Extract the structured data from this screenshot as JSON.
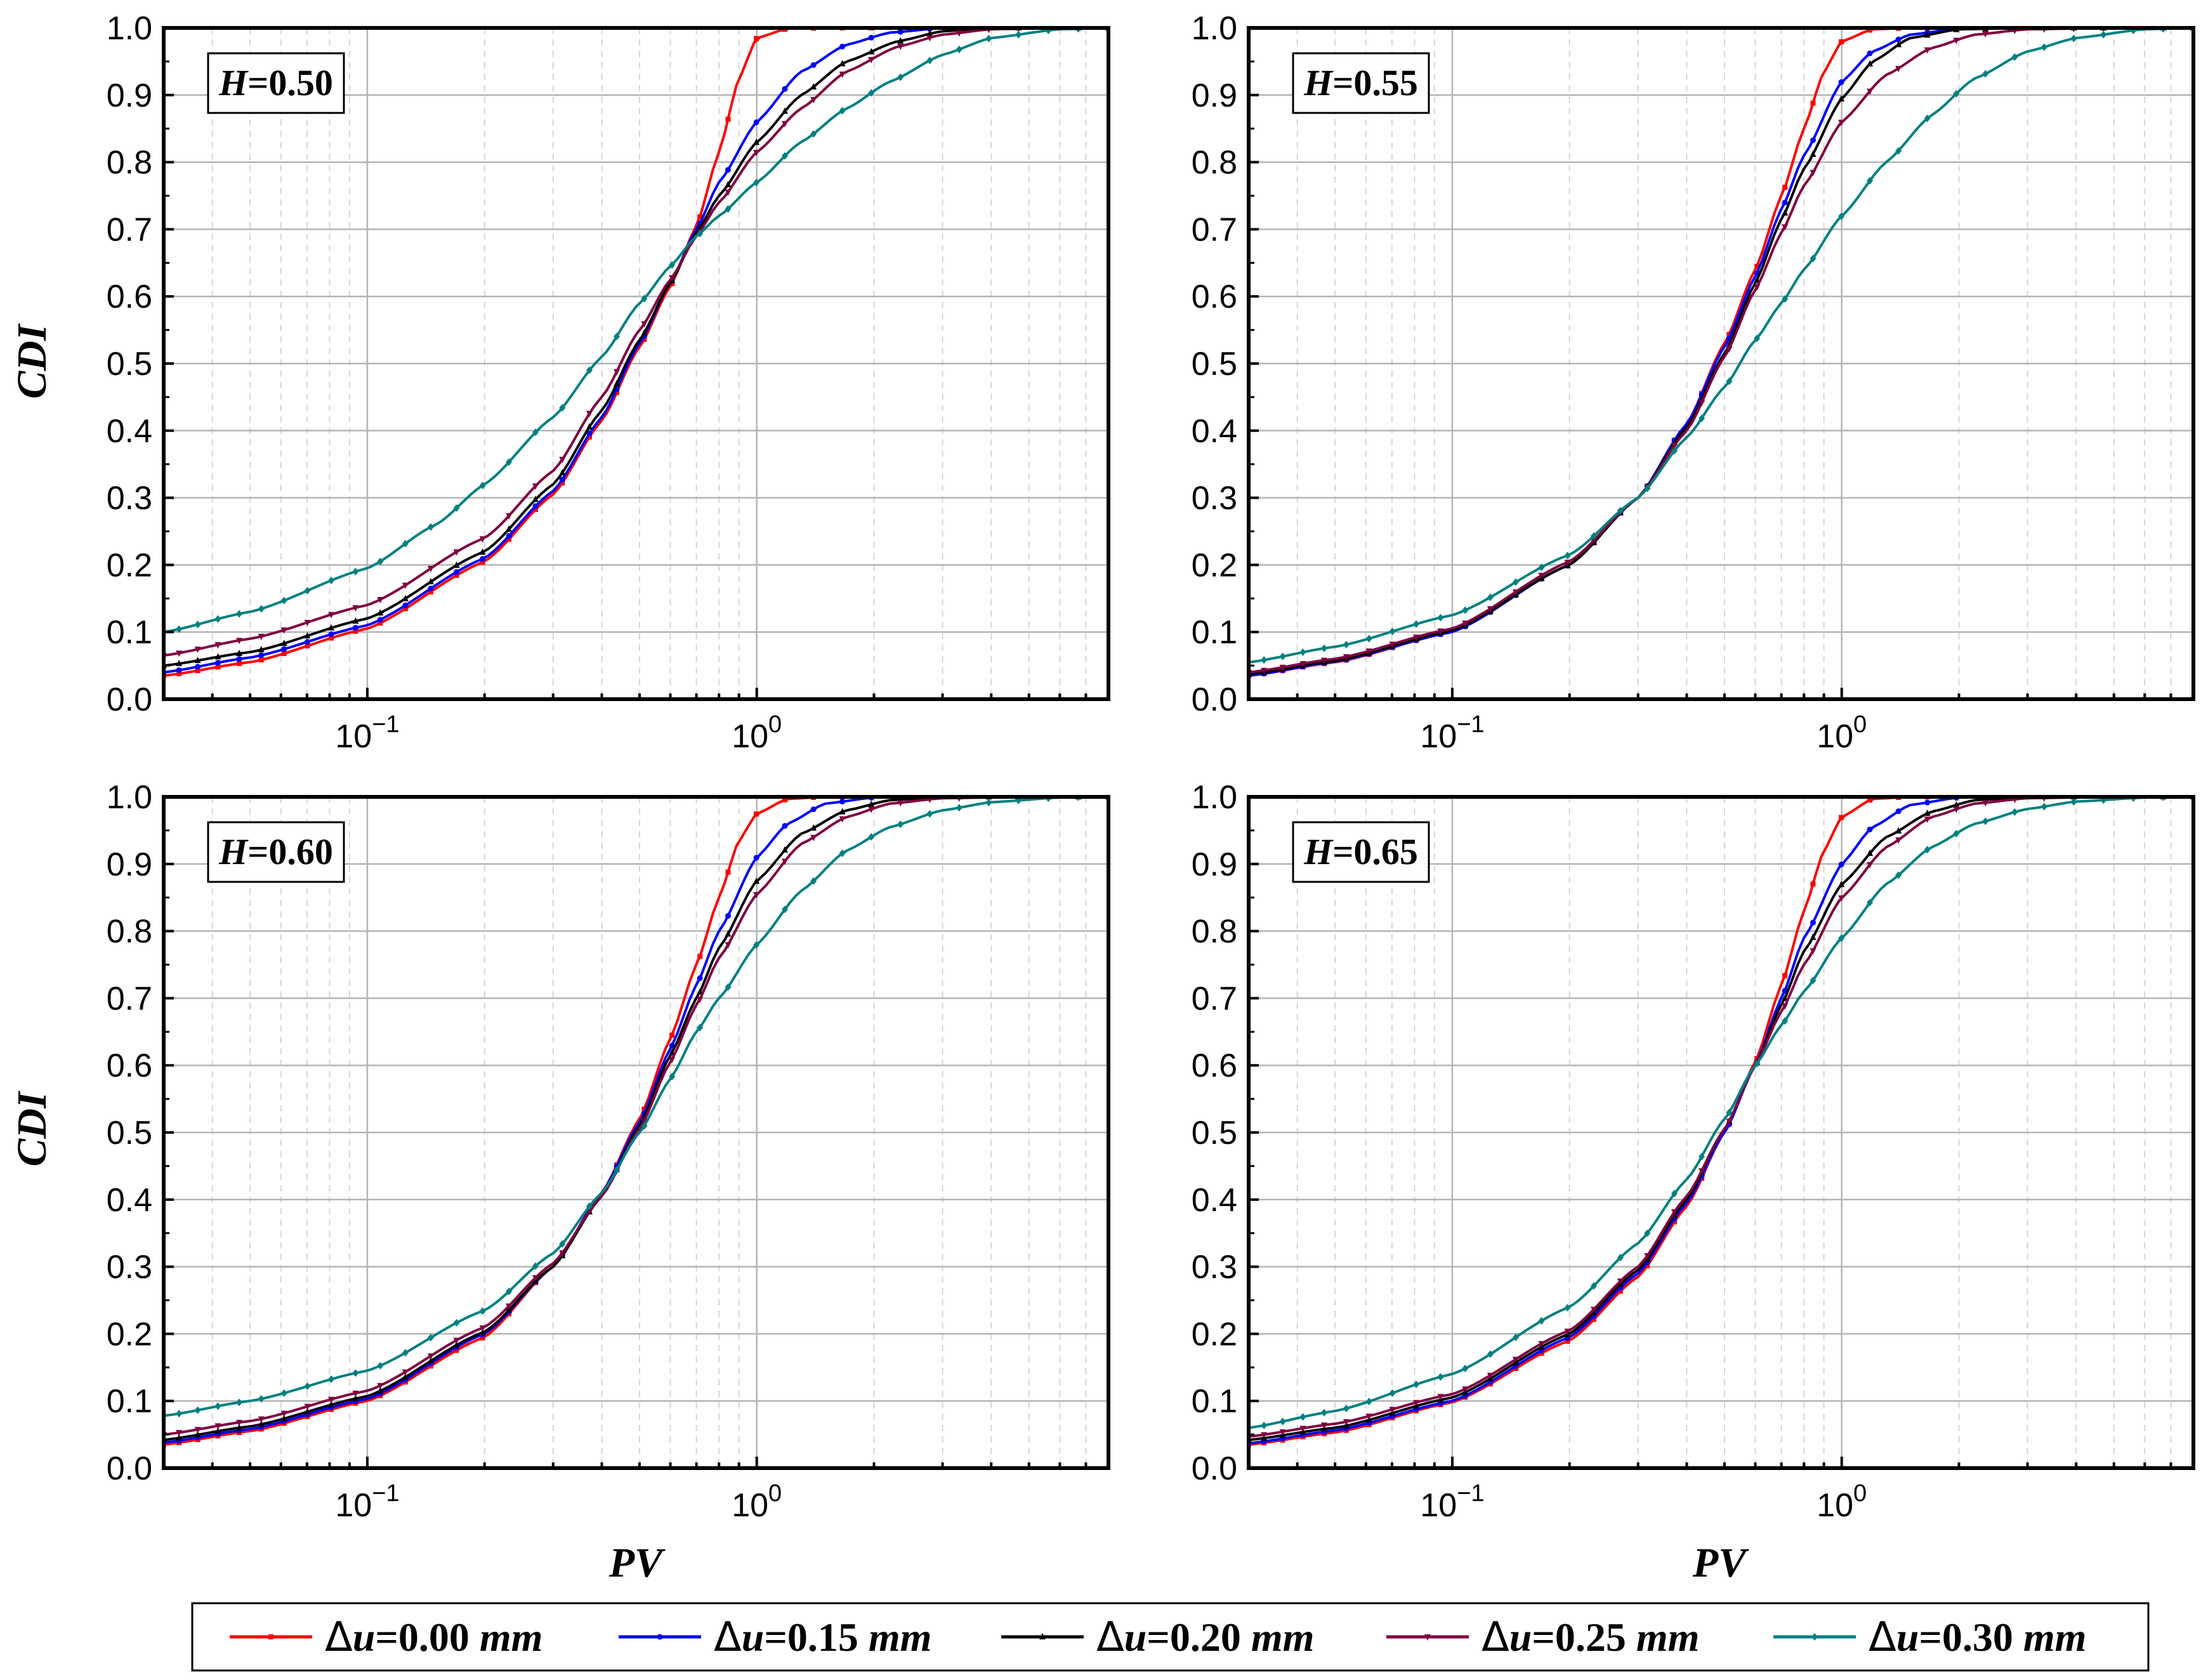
{
  "figure": {
    "ylabel": "CDI",
    "xlabel": "PV"
  },
  "legend": [
    {
      "prefix": "Δ",
      "var": "u",
      "value": "=0.00 ",
      "unit": "mm",
      "color": "#ff0000"
    },
    {
      "prefix": "Δ",
      "var": "u",
      "value": "=0.15 ",
      "unit": "mm",
      "color": "#0000ff"
    },
    {
      "prefix": "Δ",
      "var": "u",
      "value": "=0.20 ",
      "unit": "mm",
      "color": "#000000"
    },
    {
      "prefix": "Δ",
      "var": "u",
      "value": "=0.25 ",
      "unit": "mm",
      "color": "#800040"
    },
    {
      "prefix": "Δ",
      "var": "u",
      "value": "=0.30 ",
      "unit": "mm",
      "color": "#008080"
    }
  ],
  "chart_data": [
    {
      "type": "line",
      "title": "H=0.50",
      "label_var": "H",
      "label_value": "=0.50",
      "xlabel": "PV",
      "ylabel": "CDI",
      "xscale": "log",
      "xlim": [
        0.03,
        8
      ],
      "ylim": [
        0,
        1
      ],
      "yticks": [
        "0.0",
        "0.1",
        "0.2",
        "0.3",
        "0.4",
        "0.5",
        "0.6",
        "0.7",
        "0.8",
        "0.9",
        "1.0"
      ],
      "xticks": [
        {
          "base": "10",
          "exp": "−1",
          "value": 0.1
        },
        {
          "base": "10",
          "exp": "0",
          "value": 1
        }
      ],
      "series": [
        {
          "name": "Δu=0.00 mm",
          "color": "#ff0000",
          "x": [
            0.03,
            0.05,
            0.1,
            0.2,
            0.3,
            0.4,
            0.5,
            0.6,
            0.7,
            0.8,
            0.9,
            1.0,
            1.2,
            1.5,
            2,
            3,
            5,
            8
          ],
          "y": [
            0.035,
            0.055,
            0.105,
            0.205,
            0.305,
            0.415,
            0.525,
            0.615,
            0.705,
            0.815,
            0.925,
            0.985,
            0.999,
            1,
            1,
            1,
            1,
            1
          ]
        },
        {
          "name": "Δu=0.15 mm",
          "color": "#0000ff",
          "x": [
            0.03,
            0.05,
            0.1,
            0.2,
            0.3,
            0.4,
            0.5,
            0.6,
            0.7,
            0.8,
            1.0,
            1.3,
            1.7,
            2.2,
            3,
            4,
            6,
            8
          ],
          "y": [
            0.04,
            0.062,
            0.11,
            0.21,
            0.31,
            0.42,
            0.53,
            0.62,
            0.7,
            0.77,
            0.86,
            0.935,
            0.975,
            0.993,
            1,
            1,
            1,
            1
          ]
        },
        {
          "name": "Δu=0.20 mm",
          "color": "#000000",
          "x": [
            0.03,
            0.05,
            0.1,
            0.2,
            0.3,
            0.4,
            0.5,
            0.6,
            0.7,
            0.8,
            1.0,
            1.3,
            1.7,
            2.3,
            3,
            4,
            6,
            8
          ],
          "y": [
            0.05,
            0.07,
            0.12,
            0.22,
            0.32,
            0.43,
            0.535,
            0.62,
            0.695,
            0.75,
            0.83,
            0.9,
            0.95,
            0.98,
            0.995,
            1,
            1,
            1
          ]
        },
        {
          "name": "Δu=0.25 mm",
          "color": "#800040",
          "x": [
            0.03,
            0.05,
            0.1,
            0.2,
            0.3,
            0.4,
            0.5,
            0.6,
            0.7,
            0.8,
            1.0,
            1.3,
            1.7,
            2.3,
            3,
            4,
            6,
            8
          ],
          "y": [
            0.065,
            0.09,
            0.14,
            0.24,
            0.34,
            0.45,
            0.55,
            0.625,
            0.69,
            0.74,
            0.815,
            0.88,
            0.935,
            0.972,
            0.99,
            0.998,
            1,
            1
          ]
        },
        {
          "name": "Δu=0.30 mm",
          "color": "#008080",
          "x": [
            0.03,
            0.05,
            0.1,
            0.15,
            0.2,
            0.3,
            0.4,
            0.5,
            0.6,
            0.7,
            0.8,
            1.0,
            1.3,
            1.7,
            2.2,
            3,
            4,
            6,
            8
          ],
          "y": [
            0.1,
            0.13,
            0.195,
            0.26,
            0.32,
            0.42,
            0.51,
            0.59,
            0.645,
            0.69,
            0.72,
            0.77,
            0.83,
            0.88,
            0.92,
            0.96,
            0.985,
            0.998,
            1
          ]
        }
      ]
    },
    {
      "type": "line",
      "title": "H=0.55",
      "label_var": "H",
      "label_value": "=0.55",
      "xlabel": "PV",
      "ylabel": "CDI",
      "xscale": "log",
      "xlim": [
        0.03,
        8
      ],
      "ylim": [
        0,
        1
      ],
      "yticks": [
        "0.0",
        "0.1",
        "0.2",
        "0.3",
        "0.4",
        "0.5",
        "0.6",
        "0.7",
        "0.8",
        "0.9",
        "1.0"
      ],
      "xticks": [
        {
          "base": "10",
          "exp": "−1",
          "value": 0.1
        },
        {
          "base": "10",
          "exp": "0",
          "value": 1
        }
      ],
      "series": [
        {
          "name": "Δu=0.00 mm",
          "color": "#ff0000",
          "x": [
            0.03,
            0.05,
            0.1,
            0.2,
            0.3,
            0.4,
            0.5,
            0.6,
            0.7,
            0.8,
            0.9,
            1.0,
            1.2,
            1.5,
            2,
            3,
            5,
            8
          ],
          "y": [
            0.035,
            0.055,
            0.1,
            0.2,
            0.3,
            0.41,
            0.53,
            0.64,
            0.75,
            0.85,
            0.935,
            0.98,
            0.998,
            1,
            1,
            1,
            1,
            1
          ]
        },
        {
          "name": "Δu=0.15 mm",
          "color": "#0000ff",
          "x": [
            0.03,
            0.05,
            0.1,
            0.2,
            0.3,
            0.4,
            0.5,
            0.6,
            0.7,
            0.8,
            1.0,
            1.2,
            1.5,
            2,
            3,
            5,
            8
          ],
          "y": [
            0.035,
            0.056,
            0.1,
            0.2,
            0.3,
            0.41,
            0.525,
            0.63,
            0.73,
            0.81,
            0.92,
            0.965,
            0.99,
            0.999,
            1,
            1,
            1
          ]
        },
        {
          "name": "Δu=0.20 mm",
          "color": "#000000",
          "x": [
            0.03,
            0.05,
            0.1,
            0.2,
            0.3,
            0.4,
            0.5,
            0.6,
            0.7,
            0.8,
            1.0,
            1.2,
            1.5,
            2,
            3,
            5,
            8
          ],
          "y": [
            0.037,
            0.057,
            0.102,
            0.2,
            0.3,
            0.405,
            0.515,
            0.62,
            0.715,
            0.79,
            0.895,
            0.95,
            0.985,
            0.998,
            1,
            1,
            1
          ]
        },
        {
          "name": "Δu=0.25 mm",
          "color": "#800040",
          "x": [
            0.03,
            0.05,
            0.1,
            0.2,
            0.3,
            0.4,
            0.5,
            0.6,
            0.7,
            0.8,
            1.0,
            1.3,
            1.7,
            2.2,
            3,
            5,
            8
          ],
          "y": [
            0.04,
            0.06,
            0.105,
            0.205,
            0.3,
            0.4,
            0.51,
            0.61,
            0.695,
            0.765,
            0.86,
            0.93,
            0.97,
            0.99,
            0.998,
            1,
            1
          ]
        },
        {
          "name": "Δu=0.30 mm",
          "color": "#008080",
          "x": [
            0.03,
            0.05,
            0.1,
            0.2,
            0.3,
            0.4,
            0.5,
            0.6,
            0.7,
            0.8,
            1.0,
            1.3,
            1.7,
            2.2,
            3,
            4,
            6,
            8
          ],
          "y": [
            0.055,
            0.078,
            0.125,
            0.215,
            0.3,
            0.39,
            0.465,
            0.535,
            0.59,
            0.64,
            0.72,
            0.8,
            0.87,
            0.925,
            0.965,
            0.985,
            0.998,
            1
          ]
        }
      ]
    },
    {
      "type": "line",
      "title": "H=0.60",
      "label_var": "H",
      "label_value": "=0.60",
      "xlabel": "PV",
      "ylabel": "CDI",
      "xscale": "log",
      "xlim": [
        0.03,
        8
      ],
      "ylim": [
        0,
        1
      ],
      "yticks": [
        "0.0",
        "0.1",
        "0.2",
        "0.3",
        "0.4",
        "0.5",
        "0.6",
        "0.7",
        "0.8",
        "0.9",
        "1.0"
      ],
      "xticks": [
        {
          "base": "10",
          "exp": "−1",
          "value": 0.1
        },
        {
          "base": "10",
          "exp": "0",
          "value": 1
        }
      ],
      "series": [
        {
          "name": "Δu=0.00 mm",
          "color": "#ff0000",
          "x": [
            0.03,
            0.05,
            0.1,
            0.2,
            0.3,
            0.4,
            0.5,
            0.6,
            0.7,
            0.8,
            0.9,
            1.0,
            1.2,
            1.5,
            2,
            3,
            5,
            8
          ],
          "y": [
            0.035,
            0.055,
            0.1,
            0.195,
            0.3,
            0.41,
            0.52,
            0.64,
            0.75,
            0.85,
            0.935,
            0.975,
            0.997,
            1,
            1,
            1,
            1,
            1
          ]
        },
        {
          "name": "Δu=0.15 mm",
          "color": "#0000ff",
          "x": [
            0.03,
            0.05,
            0.1,
            0.2,
            0.3,
            0.4,
            0.5,
            0.6,
            0.7,
            0.8,
            1.0,
            1.2,
            1.5,
            2,
            3,
            5,
            8
          ],
          "y": [
            0.038,
            0.058,
            0.103,
            0.2,
            0.3,
            0.41,
            0.515,
            0.625,
            0.72,
            0.8,
            0.91,
            0.96,
            0.99,
            0.999,
            1,
            1,
            1
          ]
        },
        {
          "name": "Δu=0.20 mm",
          "color": "#000000",
          "x": [
            0.03,
            0.05,
            0.1,
            0.2,
            0.3,
            0.4,
            0.5,
            0.6,
            0.7,
            0.8,
            1.0,
            1.3,
            1.7,
            2.2,
            3,
            5,
            8
          ],
          "y": [
            0.042,
            0.062,
            0.107,
            0.203,
            0.3,
            0.405,
            0.51,
            0.615,
            0.7,
            0.775,
            0.875,
            0.945,
            0.98,
            0.995,
            1,
            1,
            1
          ]
        },
        {
          "name": "Δu=0.25 mm",
          "color": "#800040",
          "x": [
            0.03,
            0.05,
            0.1,
            0.2,
            0.3,
            0.4,
            0.5,
            0.6,
            0.7,
            0.8,
            1.0,
            1.3,
            1.7,
            2.2,
            3,
            5,
            8
          ],
          "y": [
            0.05,
            0.07,
            0.115,
            0.21,
            0.305,
            0.405,
            0.505,
            0.605,
            0.69,
            0.76,
            0.855,
            0.93,
            0.97,
            0.99,
            0.998,
            1,
            1
          ]
        },
        {
          "name": "Δu=0.30 mm",
          "color": "#008080",
          "x": [
            0.03,
            0.05,
            0.1,
            0.2,
            0.3,
            0.4,
            0.5,
            0.6,
            0.7,
            0.8,
            1.0,
            1.3,
            1.7,
            2.2,
            3,
            4,
            6,
            8
          ],
          "y": [
            0.078,
            0.1,
            0.145,
            0.235,
            0.32,
            0.41,
            0.5,
            0.58,
            0.65,
            0.7,
            0.78,
            0.86,
            0.92,
            0.955,
            0.98,
            0.992,
            0.999,
            1
          ]
        }
      ]
    },
    {
      "type": "line",
      "title": "H=0.65",
      "label_var": "H",
      "label_value": "=0.65",
      "xlabel": "PV",
      "ylabel": "CDI",
      "xscale": "log",
      "xlim": [
        0.03,
        8
      ],
      "ylim": [
        0,
        1
      ],
      "yticks": [
        "0.0",
        "0.1",
        "0.2",
        "0.3",
        "0.4",
        "0.5",
        "0.6",
        "0.7",
        "0.8",
        "0.9",
        "1.0"
      ],
      "xticks": [
        {
          "base": "10",
          "exp": "−1",
          "value": 0.1
        },
        {
          "base": "10",
          "exp": "0",
          "value": 1
        }
      ],
      "series": [
        {
          "name": "Δu=0.00 mm",
          "color": "#ff0000",
          "x": [
            0.03,
            0.05,
            0.1,
            0.2,
            0.3,
            0.4,
            0.5,
            0.6,
            0.7,
            0.8,
            0.9,
            1.0,
            1.2,
            1.5,
            2,
            3,
            5,
            8
          ],
          "y": [
            0.035,
            0.053,
            0.098,
            0.19,
            0.285,
            0.39,
            0.5,
            0.605,
            0.72,
            0.83,
            0.92,
            0.97,
            0.997,
            1,
            1,
            1,
            1,
            1
          ]
        },
        {
          "name": "Δu=0.15 mm",
          "color": "#0000ff",
          "x": [
            0.03,
            0.05,
            0.1,
            0.2,
            0.3,
            0.4,
            0.5,
            0.6,
            0.7,
            0.8,
            1.0,
            1.2,
            1.5,
            2,
            3,
            5,
            8
          ],
          "y": [
            0.037,
            0.056,
            0.1,
            0.195,
            0.29,
            0.395,
            0.5,
            0.6,
            0.7,
            0.79,
            0.9,
            0.955,
            0.988,
            0.999,
            1,
            1,
            1
          ]
        },
        {
          "name": "Δu=0.20 mm",
          "color": "#000000",
          "x": [
            0.03,
            0.05,
            0.1,
            0.2,
            0.3,
            0.4,
            0.5,
            0.6,
            0.7,
            0.8,
            1.0,
            1.3,
            1.7,
            2.2,
            3,
            5,
            8
          ],
          "y": [
            0.042,
            0.06,
            0.105,
            0.2,
            0.295,
            0.4,
            0.505,
            0.6,
            0.69,
            0.77,
            0.87,
            0.94,
            0.978,
            0.995,
            1,
            1,
            1
          ]
        },
        {
          "name": "Δu=0.25 mm",
          "color": "#800040",
          "x": [
            0.03,
            0.05,
            0.1,
            0.2,
            0.3,
            0.4,
            0.5,
            0.6,
            0.7,
            0.8,
            1.0,
            1.3,
            1.7,
            2.2,
            3,
            5,
            8
          ],
          "y": [
            0.047,
            0.066,
            0.11,
            0.205,
            0.3,
            0.405,
            0.505,
            0.6,
            0.68,
            0.75,
            0.85,
            0.925,
            0.97,
            0.99,
            0.998,
            1,
            1
          ]
        },
        {
          "name": "Δu=0.30 mm",
          "color": "#008080",
          "x": [
            0.03,
            0.05,
            0.1,
            0.2,
            0.3,
            0.4,
            0.5,
            0.6,
            0.7,
            0.8,
            1.0,
            1.3,
            1.7,
            2.2,
            3,
            4,
            6,
            8
          ],
          "y": [
            0.06,
            0.085,
            0.14,
            0.24,
            0.335,
            0.43,
            0.52,
            0.6,
            0.66,
            0.71,
            0.79,
            0.87,
            0.925,
            0.96,
            0.982,
            0.993,
            0.999,
            1
          ]
        }
      ]
    }
  ]
}
